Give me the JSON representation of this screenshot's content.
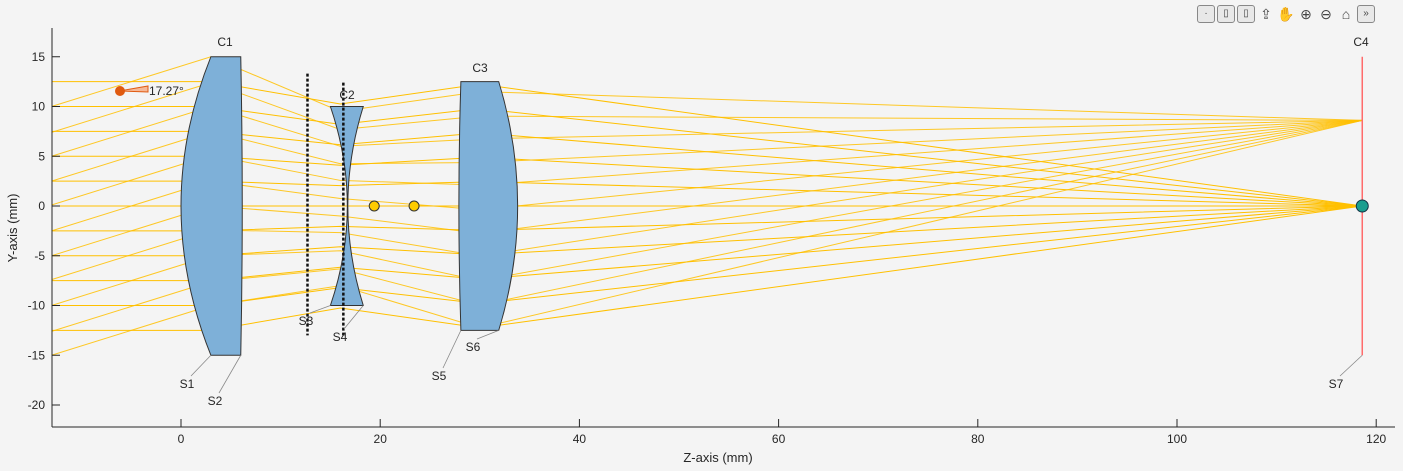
{
  "toolbar": {
    "icons": [
      "data-tips-icon",
      "link-icon",
      "brush-icon",
      "export-icon",
      "pan-hand-icon",
      "zoom-in-icon",
      "zoom-out-icon",
      "home-icon",
      "collapse-toolbar-icon"
    ]
  },
  "chart_data": {
    "type": "line",
    "xlabel": "Z-axis (mm)",
    "ylabel": "Y-axis (mm)",
    "xlim": [
      -13,
      122
    ],
    "ylim": [
      -22.2,
      18
    ],
    "xticks": [
      "0",
      "20",
      "40",
      "60",
      "80",
      "100",
      "120"
    ],
    "xtick_values": [
      0,
      20,
      40,
      60,
      80,
      100,
      120
    ],
    "yticks": [
      "15",
      "10",
      "5",
      "0",
      "-5",
      "-10",
      "-15",
      "-20"
    ],
    "ytick_values": [
      15,
      10,
      5,
      0,
      -5,
      -10,
      -15,
      -20
    ],
    "grid": false,
    "field_angle_label": "17.27°",
    "components": [
      {
        "name": "C1",
        "z_front": 0,
        "z_back": 6,
        "half_height": 15
      },
      {
        "name": "C2",
        "z_front": 15,
        "z_back": 18.3,
        "half_height": 10
      },
      {
        "name": "C3",
        "z_front": 28,
        "z_back": 34,
        "half_height": 12.5
      },
      {
        "name": "C4",
        "z": 118.6,
        "half_height": 15
      }
    ],
    "surfaces": [
      "S1",
      "S2",
      "S3",
      "S4",
      "S5",
      "S6",
      "S7"
    ],
    "stops_z": [
      12.7,
      16.3
    ],
    "focal_points_z": [
      19.4,
      23.4
    ],
    "image_point": [
      118.6,
      0
    ],
    "colors": {
      "ray": "#ffc000",
      "lens": "#7eb0d8",
      "image_plane": "#ff6b6b",
      "image_point": "#1a9e8f",
      "source": "#e05a10"
    }
  }
}
